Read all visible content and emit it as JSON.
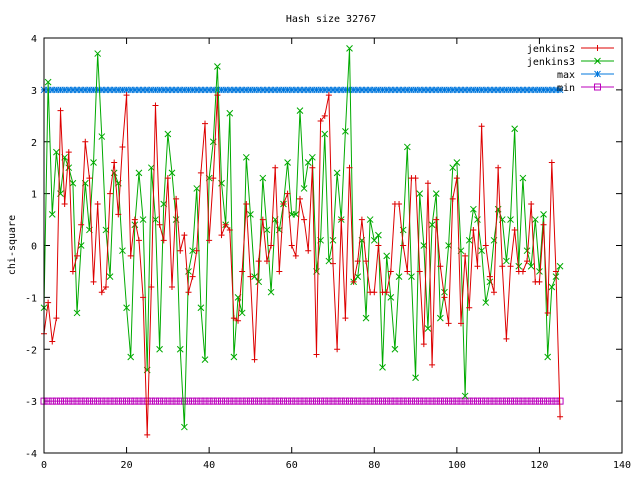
{
  "chart_data": {
    "type": "line",
    "title": "Hash size 32767",
    "xlabel": "",
    "ylabel": "chi-square",
    "xlim": [
      0,
      140
    ],
    "ylim": [
      -4,
      4
    ],
    "xticks": [
      0,
      20,
      40,
      60,
      80,
      100,
      120,
      140
    ],
    "yticks": [
      -4,
      -3,
      -2,
      -1,
      0,
      1,
      2,
      3,
      4
    ],
    "grid": false,
    "legend_position": "top-right",
    "x": [
      0,
      1,
      2,
      3,
      4,
      5,
      6,
      7,
      8,
      9,
      10,
      11,
      12,
      13,
      14,
      15,
      16,
      17,
      18,
      19,
      20,
      21,
      22,
      23,
      24,
      25,
      26,
      27,
      28,
      29,
      30,
      31,
      32,
      33,
      34,
      35,
      36,
      37,
      38,
      39,
      40,
      41,
      42,
      43,
      44,
      45,
      46,
      47,
      48,
      49,
      50,
      51,
      52,
      53,
      54,
      55,
      56,
      57,
      58,
      59,
      60,
      61,
      62,
      63,
      64,
      65,
      66,
      67,
      68,
      69,
      70,
      71,
      72,
      73,
      74,
      75,
      76,
      77,
      78,
      79,
      80,
      81,
      82,
      83,
      84,
      85,
      86,
      87,
      88,
      89,
      90,
      91,
      92,
      93,
      94,
      95,
      96,
      97,
      98,
      99,
      100,
      101,
      102,
      103,
      104,
      105,
      106,
      107,
      108,
      109,
      110,
      111,
      112,
      113,
      114,
      115,
      116,
      117,
      118,
      119,
      120,
      121,
      122,
      123,
      124,
      125
    ],
    "series": [
      {
        "name": "jenkins2",
        "color": "#dd0000",
        "marker": "plus",
        "values": [
          -1.7,
          -1.1,
          -1.85,
          -1.4,
          2.6,
          0.8,
          1.8,
          -0.5,
          -0.2,
          0.4,
          2.0,
          1.3,
          -0.7,
          0.8,
          -0.9,
          -0.8,
          1.0,
          1.6,
          0.6,
          1.9,
          2.9,
          -0.2,
          0.5,
          0.1,
          -1.0,
          -3.65,
          -0.8,
          2.7,
          0.4,
          0.1,
          1.3,
          -0.8,
          0.9,
          -0.1,
          0.2,
          -0.9,
          -0.6,
          -0.1,
          1.4,
          2.35,
          0.1,
          1.3,
          2.9,
          0.2,
          0.4,
          0.3,
          -1.4,
          -1.45,
          -0.5,
          0.8,
          -0.6,
          -2.2,
          -0.3,
          0.5,
          -0.3,
          0.0,
          1.5,
          -0.5,
          0.8,
          1.0,
          0.0,
          -0.2,
          0.9,
          0.5,
          -0.1,
          1.5,
          -2.1,
          2.4,
          2.5,
          2.9,
          -0.35,
          -2.0,
          0.5,
          -1.4,
          1.5,
          -0.7,
          -0.3,
          0.5,
          -0.3,
          -0.9,
          -0.9,
          0.0,
          -0.9,
          -0.9,
          -0.5,
          0.8,
          0.8,
          0.0,
          -0.5,
          1.3,
          1.3,
          -0.5,
          -1.9,
          1.2,
          -2.3,
          0.5,
          -0.4,
          -1.0,
          -1.5,
          0.9,
          1.3,
          -1.5,
          -0.2,
          -1.2,
          0.3,
          -0.4,
          2.3,
          0.0,
          -0.6,
          -0.9,
          1.5,
          -0.4,
          -1.8,
          -0.4,
          0.3,
          -0.5,
          -0.5,
          -0.3,
          0.8,
          -0.7,
          -0.7,
          0.4,
          -1.3,
          1.6,
          -0.5,
          -3.3
        ]
      },
      {
        "name": "jenkins3",
        "color": "#00aa00",
        "marker": "cross",
        "values": [
          -1.2,
          3.15,
          0.6,
          1.8,
          1.0,
          1.7,
          1.5,
          1.2,
          -1.3,
          0.0,
          1.2,
          0.3,
          1.6,
          3.7,
          2.1,
          0.3,
          -0.6,
          1.4,
          1.2,
          -0.1,
          -1.2,
          -2.15,
          0.4,
          1.4,
          0.5,
          -2.4,
          1.5,
          0.5,
          -2.0,
          0.8,
          2.15,
          1.4,
          0.5,
          -2.0,
          -3.5,
          -0.5,
          -0.1,
          1.1,
          -1.2,
          -2.2,
          1.3,
          2.0,
          3.45,
          1.2,
          0.4,
          2.55,
          -2.15,
          -1.0,
          -1.3,
          1.7,
          0.6,
          -0.6,
          -0.7,
          1.3,
          0.3,
          -0.9,
          0.5,
          0.3,
          0.8,
          1.6,
          0.6,
          0.6,
          2.6,
          1.1,
          1.6,
          1.7,
          -0.5,
          0.1,
          2.15,
          -0.3,
          0.1,
          1.4,
          0.5,
          2.2,
          3.8,
          -0.7,
          -0.6,
          0.1,
          -1.4,
          0.5,
          0.1,
          0.2,
          -2.35,
          -0.2,
          -1.0,
          -2.0,
          -0.6,
          0.3,
          1.9,
          -0.6,
          -2.55,
          1.0,
          0.0,
          -1.6,
          0.4,
          1.0,
          -1.4,
          -0.9,
          0.0,
          1.5,
          1.6,
          -0.1,
          -2.9,
          0.1,
          0.7,
          0.5,
          -0.1,
          -1.1,
          -0.7,
          0.1,
          0.7,
          0.5,
          -0.3,
          0.5,
          2.25,
          -0.4,
          1.3,
          -0.1,
          -0.4,
          0.5,
          -0.5,
          0.6,
          -2.15,
          -0.8,
          -0.6,
          -0.4
        ]
      },
      {
        "name": "max",
        "color": "#0077dd",
        "marker": "star",
        "values": [
          3,
          3,
          3,
          3,
          3,
          3,
          3,
          3,
          3,
          3,
          3,
          3,
          3,
          3,
          3,
          3,
          3,
          3,
          3,
          3,
          3,
          3,
          3,
          3,
          3,
          3,
          3,
          3,
          3,
          3,
          3,
          3,
          3,
          3,
          3,
          3,
          3,
          3,
          3,
          3,
          3,
          3,
          3,
          3,
          3,
          3,
          3,
          3,
          3,
          3,
          3,
          3,
          3,
          3,
          3,
          3,
          3,
          3,
          3,
          3,
          3,
          3,
          3,
          3,
          3,
          3,
          3,
          3,
          3,
          3,
          3,
          3,
          3,
          3,
          3,
          3,
          3,
          3,
          3,
          3,
          3,
          3,
          3,
          3,
          3,
          3,
          3,
          3,
          3,
          3,
          3,
          3,
          3,
          3,
          3,
          3,
          3,
          3,
          3,
          3,
          3,
          3,
          3,
          3,
          3,
          3,
          3,
          3,
          3,
          3,
          3,
          3,
          3,
          3,
          3,
          3,
          3,
          3,
          3,
          3,
          3,
          3,
          3,
          3,
          3,
          3
        ]
      },
      {
        "name": "min",
        "color": "#bb00bb",
        "marker": "square",
        "values": [
          -3,
          -3,
          -3,
          -3,
          -3,
          -3,
          -3,
          -3,
          -3,
          -3,
          -3,
          -3,
          -3,
          -3,
          -3,
          -3,
          -3,
          -3,
          -3,
          -3,
          -3,
          -3,
          -3,
          -3,
          -3,
          -3,
          -3,
          -3,
          -3,
          -3,
          -3,
          -3,
          -3,
          -3,
          -3,
          -3,
          -3,
          -3,
          -3,
          -3,
          -3,
          -3,
          -3,
          -3,
          -3,
          -3,
          -3,
          -3,
          -3,
          -3,
          -3,
          -3,
          -3,
          -3,
          -3,
          -3,
          -3,
          -3,
          -3,
          -3,
          -3,
          -3,
          -3,
          -3,
          -3,
          -3,
          -3,
          -3,
          -3,
          -3,
          -3,
          -3,
          -3,
          -3,
          -3,
          -3,
          -3,
          -3,
          -3,
          -3,
          -3,
          -3,
          -3,
          -3,
          -3,
          -3,
          -3,
          -3,
          -3,
          -3,
          -3,
          -3,
          -3,
          -3,
          -3,
          -3,
          -3,
          -3,
          -3,
          -3,
          -3,
          -3,
          -3,
          -3,
          -3,
          -3,
          -3,
          -3,
          -3,
          -3,
          -3,
          -3,
          -3,
          -3,
          -3,
          -3,
          -3,
          -3,
          -3,
          -3,
          -3,
          -3,
          -3,
          -3,
          -3,
          -3
        ]
      }
    ]
  }
}
